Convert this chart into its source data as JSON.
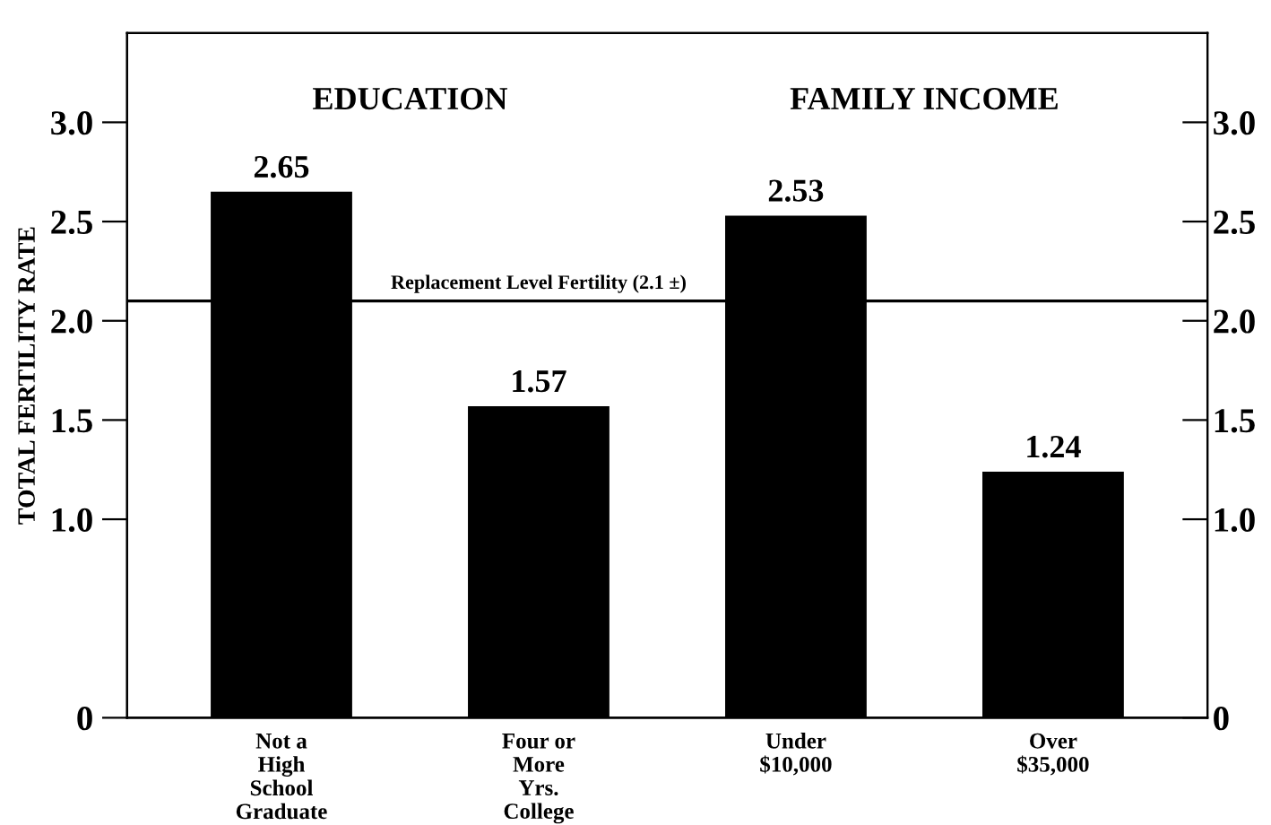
{
  "chart_data": {
    "type": "bar",
    "ylabel": "TOTAL FERTILITY RATE",
    "categories": [
      "Not a\nHigh\nSchool\nGraduate",
      "Four or\nMore\nYrs.\nCollege",
      "Under\n$10,000",
      "Over\n$35,000"
    ],
    "values": [
      2.65,
      1.57,
      2.53,
      1.24
    ],
    "color": "#000000",
    "data_labels": true,
    "ylim": [
      0,
      3.45
    ],
    "yticks": [
      0,
      {
        "value": 1.0,
        "label": "1.0"
      },
      1.5,
      {
        "value": 2.0,
        "label": "2.0"
      },
      2.5,
      {
        "value": 3.0,
        "label": "3.0"
      }
    ],
    "y2lim": [
      0,
      3.45
    ],
    "y2ticks": [
      0,
      {
        "value": 1.0,
        "label": "1.0"
      },
      1.5,
      {
        "value": 2.0,
        "label": "2.0"
      },
      2.5,
      {
        "value": 3.0,
        "label": "3.0"
      }
    ],
    "ref_lines": [
      {
        "axis": "y",
        "value": 2.1,
        "label": "Replacement Level Fertility (2.1 ±)",
        "color": "#000000"
      }
    ],
    "annotations": [
      "EDUCATION",
      "FAMILY INCOME"
    ],
    "grid": false,
    "legend": false
  }
}
